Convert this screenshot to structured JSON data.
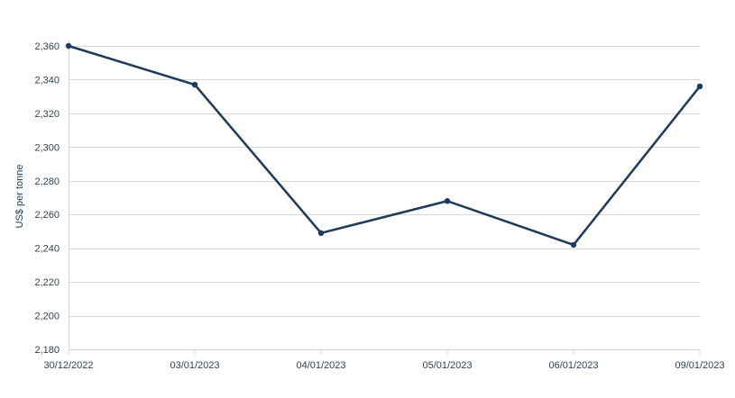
{
  "chart_data": {
    "type": "line",
    "categories": [
      "30/12/2022",
      "03/01/2023",
      "04/01/2023",
      "05/01/2023",
      "06/01/2023",
      "09/01/2023"
    ],
    "series": [
      {
        "values": [
          2360,
          2337,
          2249,
          2268,
          2242,
          2336
        ],
        "color": "#1b3a5c"
      }
    ],
    "ylabel": "US$ per tonne",
    "xlabel": "",
    "title": "",
    "ylim": [
      2180,
      2360
    ],
    "yticks": [
      2180,
      2200,
      2220,
      2240,
      2260,
      2280,
      2300,
      2320,
      2340,
      2360
    ],
    "ytick_labels": [
      "2,180",
      "2,200",
      "2,220",
      "2,240",
      "2,260",
      "2,280",
      "2,300",
      "2,320",
      "2,340",
      "2,360"
    ],
    "grid": true,
    "legend": "none"
  }
}
